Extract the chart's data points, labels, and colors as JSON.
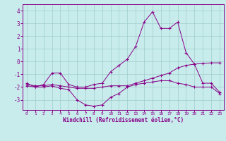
{
  "xlabel": "Windchill (Refroidissement éolien,°C)",
  "bg_color": "#c8ecec",
  "grid_color": "#a0cccc",
  "line_color": "#880088",
  "x_hours": [
    0,
    1,
    2,
    3,
    4,
    5,
    6,
    7,
    8,
    9,
    10,
    11,
    12,
    13,
    14,
    15,
    16,
    17,
    18,
    19,
    20,
    21,
    22,
    23
  ],
  "line1_y": [
    -1.7,
    -2.0,
    -1.8,
    -0.9,
    -0.9,
    -1.8,
    -2.0,
    -2.0,
    -1.8,
    -1.7,
    -0.8,
    -0.3,
    0.2,
    1.2,
    3.1,
    3.9,
    2.6,
    2.6,
    3.1,
    0.7,
    -0.2,
    -1.7,
    -1.7,
    -2.4
  ],
  "line2_y": [
    -1.8,
    -1.9,
    -1.9,
    -1.8,
    -1.9,
    -2.0,
    -2.1,
    -2.1,
    -2.1,
    -2.0,
    -1.9,
    -1.9,
    -1.9,
    -1.7,
    -1.5,
    -1.3,
    -1.1,
    -0.9,
    -0.5,
    -0.3,
    -0.2,
    -0.15,
    -0.1,
    -0.1
  ],
  "line3_y": [
    -1.9,
    -2.0,
    -2.0,
    -1.9,
    -2.1,
    -2.2,
    -3.0,
    -3.4,
    -3.5,
    -3.4,
    -2.8,
    -2.5,
    -2.0,
    -1.8,
    -1.7,
    -1.6,
    -1.5,
    -1.5,
    -1.7,
    -1.8,
    -2.0,
    -2.0,
    -2.0,
    -2.5
  ],
  "ylim": [
    -3.8,
    4.5
  ],
  "yticks": [
    -3,
    -2,
    -1,
    0,
    1,
    2,
    3,
    4
  ],
  "xticks": [
    0,
    1,
    2,
    3,
    4,
    5,
    6,
    7,
    8,
    9,
    10,
    11,
    12,
    13,
    14,
    15,
    16,
    17,
    18,
    19,
    20,
    21,
    22,
    23
  ]
}
